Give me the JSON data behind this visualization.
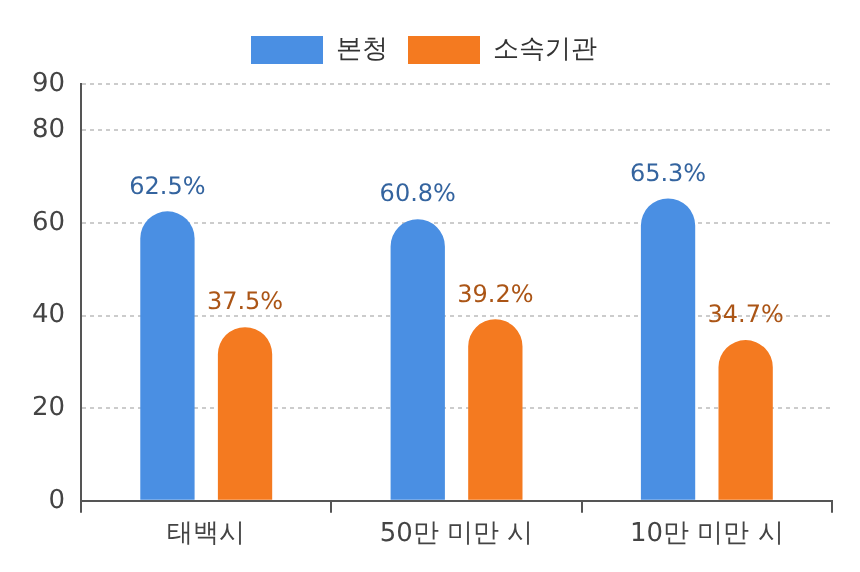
{
  "chart_data": {
    "type": "bar",
    "categories": [
      "태백시",
      "50만 미만 시",
      "10만 미만 시"
    ],
    "series": [
      {
        "name": "본청",
        "color": "#4a8fe3",
        "values": [
          62.5,
          60.8,
          65.3
        ],
        "value_labels": [
          "62.5%",
          "60.8%",
          "65.3%"
        ]
      },
      {
        "name": "소속기관",
        "color": "#f47a20",
        "values": [
          37.5,
          39.2,
          34.7
        ],
        "value_labels": [
          "37.5%",
          "39.2%",
          "34.7%"
        ]
      }
    ],
    "ylim": [
      0,
      90
    ],
    "yticks": [
      0,
      20,
      40,
      60,
      80,
      90
    ],
    "grid": "y",
    "legend": "top"
  }
}
